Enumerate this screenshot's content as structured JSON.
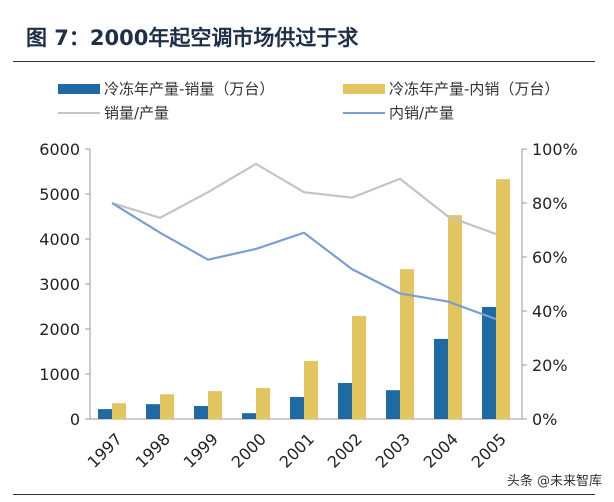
{
  "title": "图 7：2000年起空调市场供过于求",
  "watermark": "头条 @未来智库",
  "chart_data": {
    "type": "bar+line",
    "title": "图 7：2000年起空调市场供过于求",
    "categories": [
      "1997",
      "1998",
      "1999",
      "2000",
      "2001",
      "2002",
      "2003",
      "2004",
      "2005"
    ],
    "left_axis": {
      "ylim": [
        0,
        6000
      ],
      "ticks": [
        "0",
        "1000",
        "2000",
        "3000",
        "4000",
        "5000",
        "6000"
      ]
    },
    "right_axis": {
      "ylim": [
        0,
        100
      ],
      "ticks": [
        "0%",
        "20%",
        "40%",
        "60%",
        "80%",
        "100%"
      ]
    },
    "grid": false,
    "legend": "top",
    "series": [
      {
        "name": "冷冻年产量-销量（万台）",
        "type": "bar",
        "axis": "left",
        "color": "#1f6aa5",
        "values": [
          220,
          330,
          290,
          130,
          490,
          800,
          640,
          1780,
          2490
        ]
      },
      {
        "name": "冷冻年产量-内销（万台）",
        "type": "bar",
        "axis": "left",
        "color": "#e3c55f",
        "values": [
          350,
          550,
          620,
          690,
          1290,
          2290,
          3330,
          4530,
          5330
        ]
      },
      {
        "name": "销量/产量",
        "type": "line",
        "axis": "right",
        "color": "#c4c4c4",
        "values": [
          80,
          74.5,
          84,
          94.5,
          84,
          82,
          89,
          75,
          68.5
        ]
      },
      {
        "name": "内销/产量",
        "type": "line",
        "axis": "right",
        "color": "#7a9fd4",
        "values": [
          80,
          69,
          59,
          63,
          69,
          55.5,
          46.5,
          43.5,
          37
        ]
      }
    ]
  }
}
